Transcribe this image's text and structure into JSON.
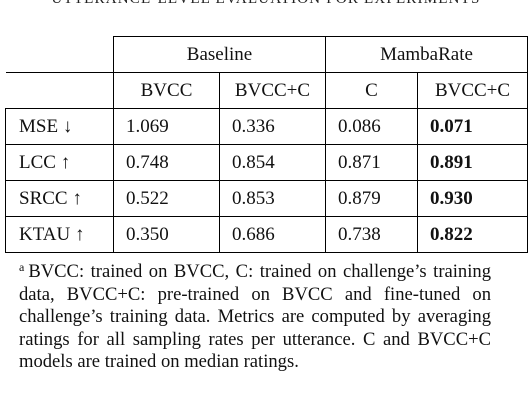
{
  "table": {
    "caption": "UTTERANCE-LEVEL EVALUATION FOR EXPERIMENTS",
    "groups": [
      "Baseline",
      "MambaRate"
    ],
    "columns": [
      "BVCC",
      "BVCC+C",
      "C",
      "BVCC+C"
    ],
    "rows": [
      {
        "metric": "MSE ↓",
        "values": [
          "1.069",
          "0.336",
          "0.086",
          "0.071"
        ],
        "best_index": 3
      },
      {
        "metric": "LCC ↑",
        "values": [
          "0.748",
          "0.854",
          "0.871",
          "0.891"
        ],
        "best_index": 3
      },
      {
        "metric": "SRCC ↑",
        "values": [
          "0.522",
          "0.853",
          "0.879",
          "0.930"
        ],
        "best_index": 3
      },
      {
        "metric": "KTAU ↑",
        "values": [
          "0.350",
          "0.686",
          "0.738",
          "0.822"
        ],
        "best_index": 3
      }
    ]
  },
  "footnote": {
    "marker": "a",
    "text": "BVCC: trained on BVCC, C: trained on challenge’s training data, BVCC+C: pre-trained on BVCC and fine-tuned on challenge’s training data. Metrics are computed by averaging ratings for all sampling rates per utterance. C and BVCC+C models are trained on median ratings."
  }
}
